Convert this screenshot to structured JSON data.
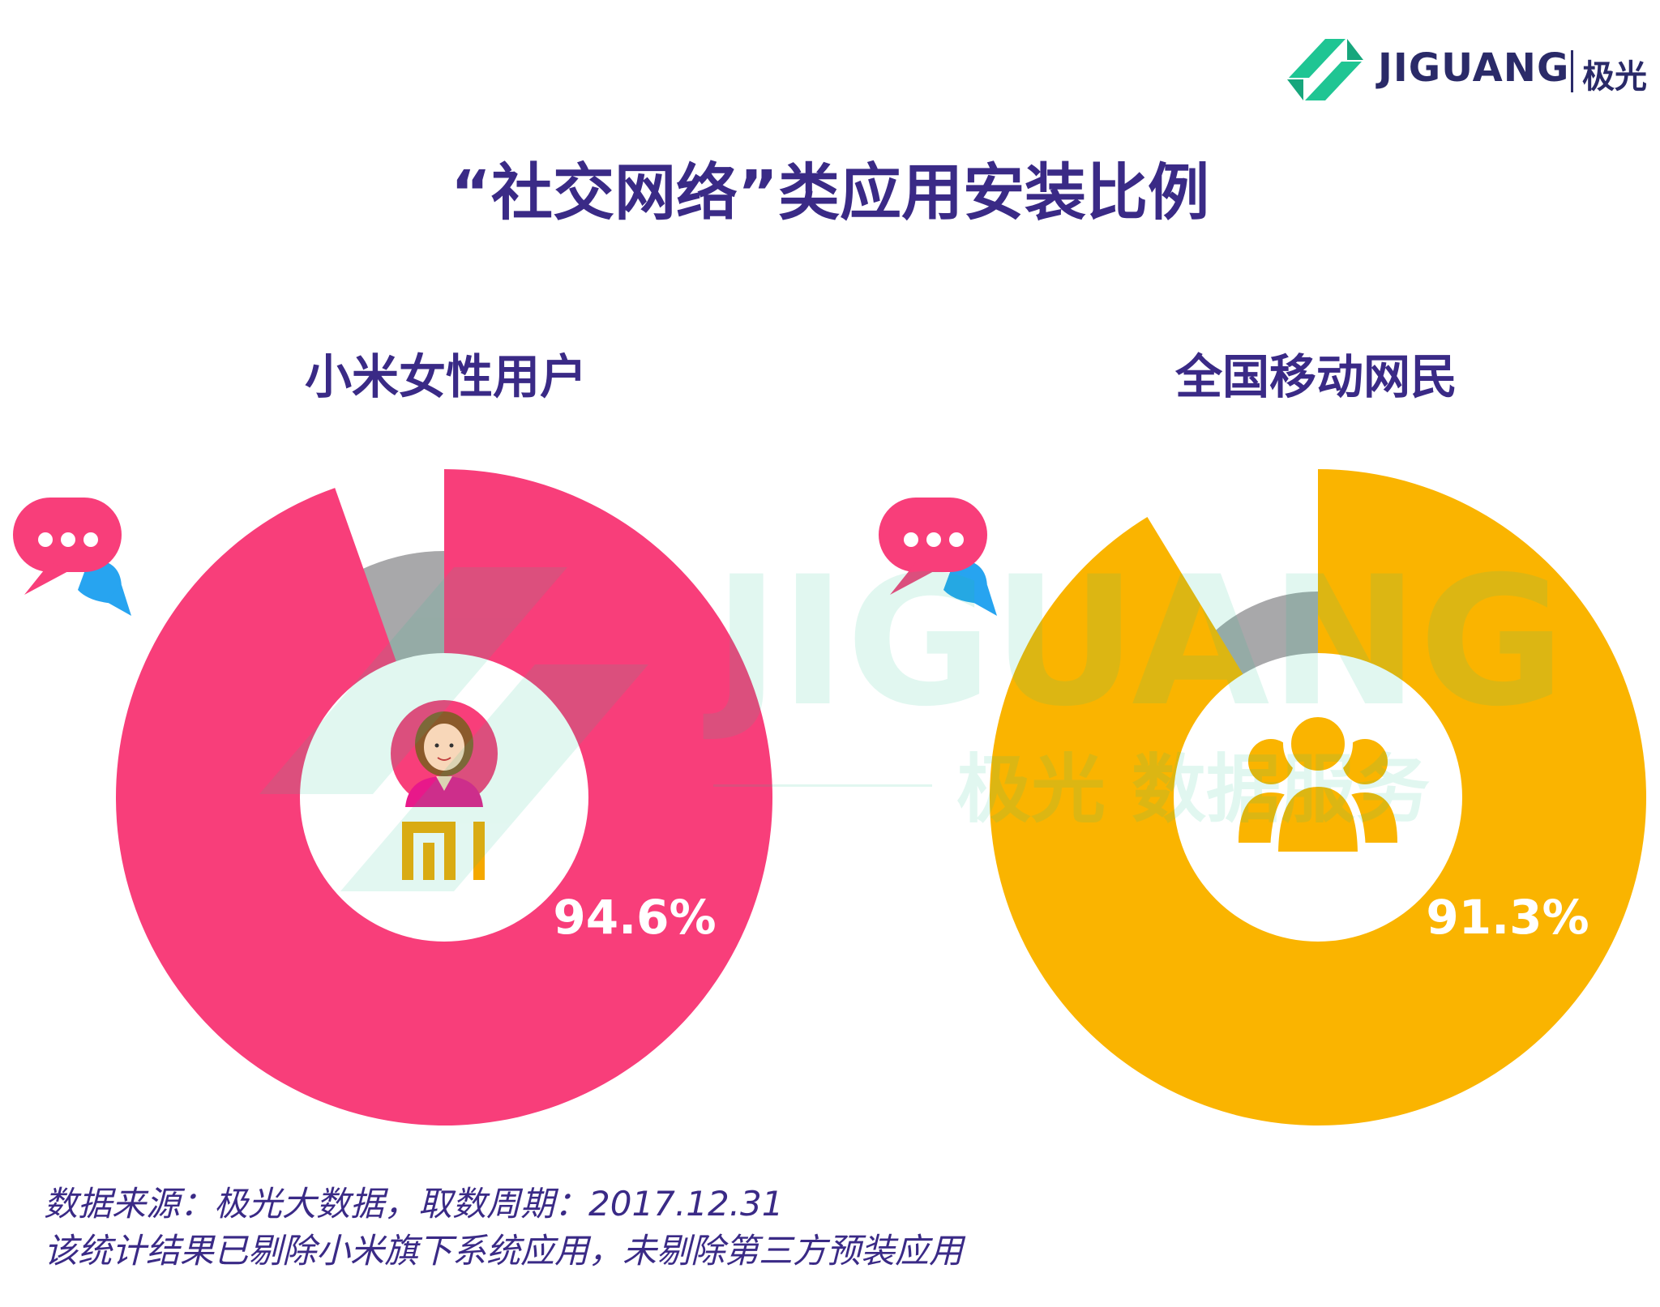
{
  "brand": {
    "name": "JIGUANG",
    "name_cn": "极光"
  },
  "title": "“社交网络”类应用安装比例",
  "watermark": {
    "main": "JIGUANG",
    "sub": "极光 数据服务"
  },
  "chart_data": [
    {
      "type": "pie",
      "title": "小米女性用户",
      "slices": [
        {
          "label": "94.6%",
          "value": 94.6,
          "color": "#f83e7a"
        }
      ],
      "remainder_color": "#a8a8aa",
      "center_icon": "woman-avatar-icon",
      "logo": "mi-logo"
    },
    {
      "type": "pie",
      "title": "全国移动网民",
      "slices": [
        {
          "label": "91.3%",
          "value": 91.3,
          "color": "#fab400"
        }
      ],
      "remainder_color": "#a8a8aa",
      "center_icon": "group-people-icon"
    }
  ],
  "colors": {
    "pink": "#f83e7a",
    "gold": "#fab400",
    "gray": "#a8a8aa",
    "navy": "#3a2a86",
    "green": "#1fc593",
    "bubble_blue": "#27a4f0"
  },
  "footnotes": [
    "数据来源：极光大数据，取数周期：2017.12.31",
    "该统计结果已剔除小米旗下系统应用，未剔除第三方预装应用"
  ]
}
